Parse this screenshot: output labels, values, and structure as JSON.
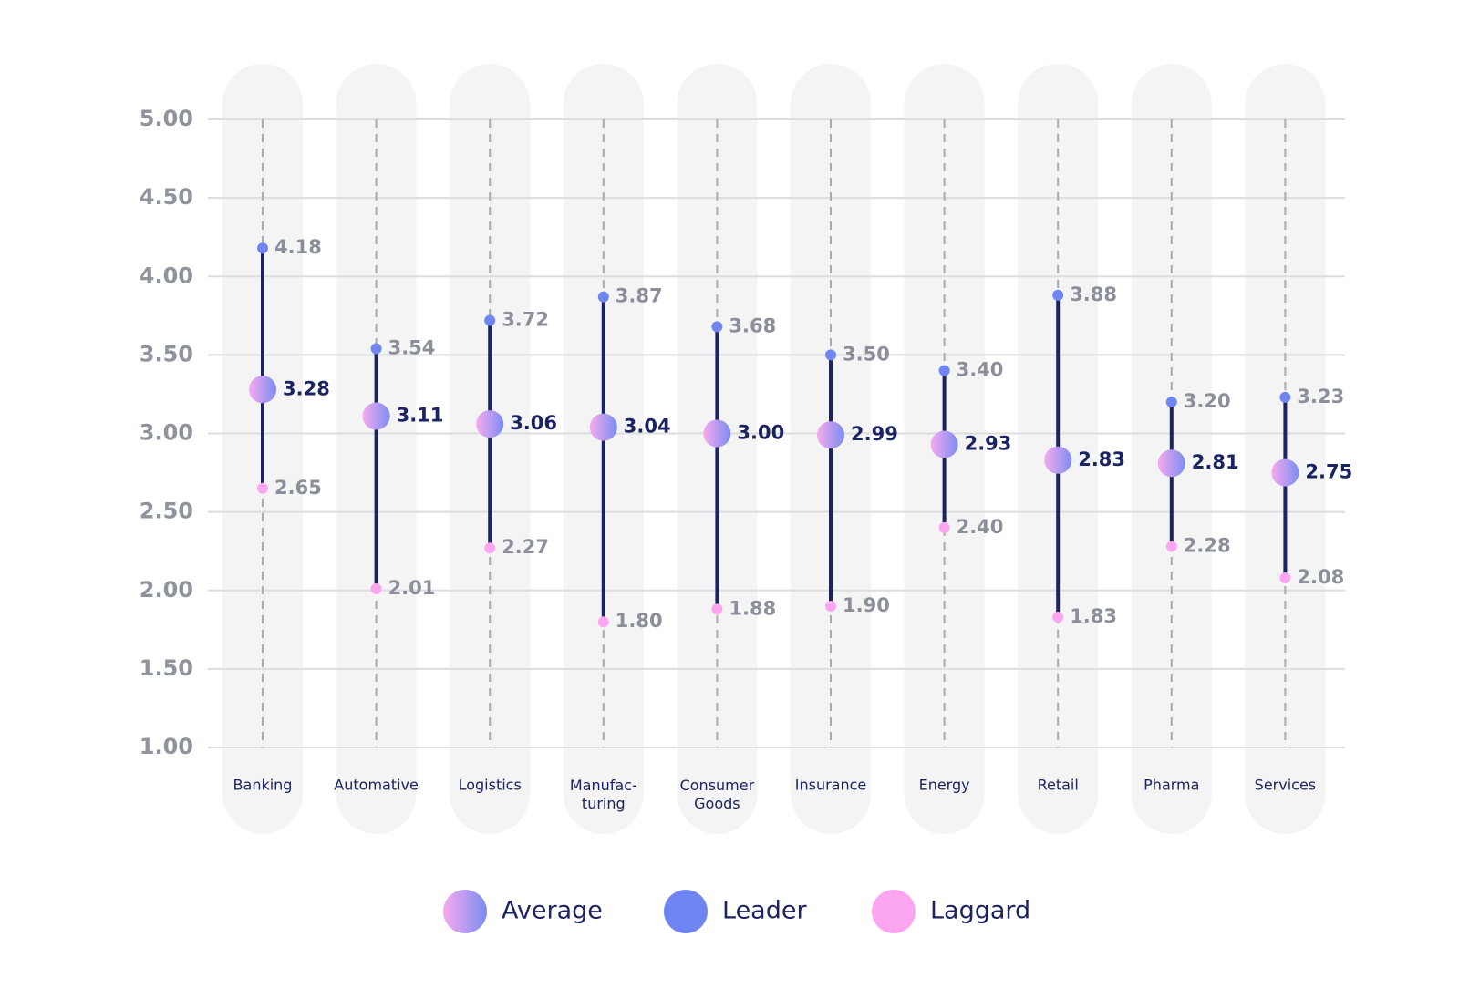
{
  "chart_data": {
    "type": "range-dot",
    "categories": [
      "Banking",
      "Automative",
      "Logistics",
      "Manufac-\nturing",
      "Consumer\nGoods",
      "Insurance",
      "Energy",
      "Retail",
      "Pharma",
      "Services"
    ],
    "series": [
      {
        "name": "Average",
        "gradient": [
          "#f8aaee",
          "#7b8df2"
        ],
        "label_color": "#1b2363",
        "values": [
          3.28,
          3.11,
          3.06,
          3.04,
          3.0,
          2.99,
          2.93,
          2.83,
          2.81,
          2.75
        ],
        "value_labels": [
          "3.28",
          "3.11",
          "3.06",
          "3.04",
          "3.00",
          "2.99",
          "2.93",
          "2.83",
          "2.81",
          "2.75"
        ]
      },
      {
        "name": "Leader",
        "color": "#6f86f2",
        "label_color": "#8b8f99",
        "values": [
          4.18,
          3.54,
          3.72,
          3.87,
          3.68,
          3.5,
          3.4,
          3.88,
          3.2,
          3.23
        ],
        "value_labels": [
          "4.18",
          "3.54",
          "3.72",
          "3.87",
          "3.68",
          "3.50",
          "3.40",
          "3.88",
          "3.20",
          "3.23"
        ]
      },
      {
        "name": "Laggard",
        "color": "#fca6f2",
        "label_color": "#8b8f99",
        "values": [
          2.65,
          2.01,
          2.27,
          1.8,
          1.88,
          1.9,
          2.4,
          1.83,
          2.28,
          2.08
        ],
        "value_labels": [
          "2.65",
          "2.01",
          "2.27",
          "1.80",
          "1.88",
          "1.90",
          "2.40",
          "1.83",
          "2.28",
          "2.08"
        ]
      }
    ],
    "range_color": "#1b2363",
    "ylim": [
      1,
      5
    ],
    "yticks": [
      {
        "value": 1,
        "label": "1.00"
      },
      {
        "value": 1.5,
        "label": "1.50"
      },
      {
        "value": 2,
        "label": "2.00"
      },
      {
        "value": 2.5,
        "label": "2.50"
      },
      {
        "value": 3,
        "label": "3.00"
      },
      {
        "value": 3.5,
        "label": "3.50"
      },
      {
        "value": 4,
        "label": "4.00"
      },
      {
        "value": 4.5,
        "label": "4.50"
      },
      {
        "value": 5,
        "label": "5.00"
      }
    ],
    "grid": true
  }
}
